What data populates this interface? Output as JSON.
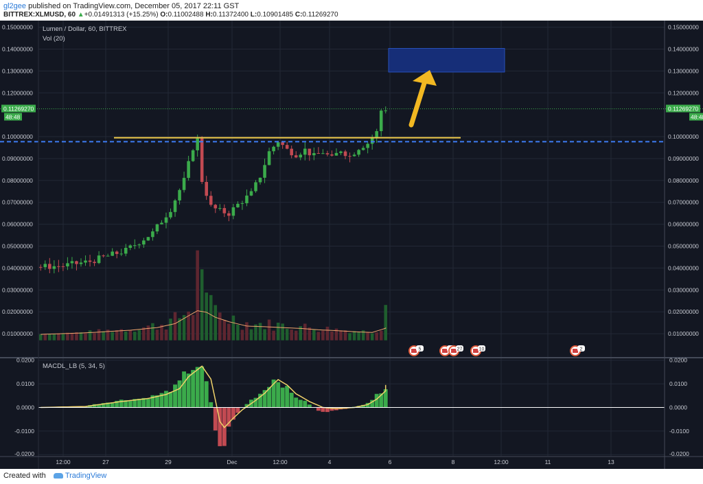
{
  "header": {
    "user": "gl2gee",
    "published": " published on TradingView.com, December 05, 2017 22:11 GST",
    "symbol": "BITTREX:XLMUSD, 60",
    "change_arrow": "▲",
    "change": "+0.01491313 (+15.25%)",
    "o_label": "O:",
    "o": "0.11002488",
    "h_label": "H:",
    "h": "0.11372400",
    "l_label": "L:",
    "l": "0.10901485",
    "c_label": "C:",
    "c": "0.11269270",
    "up_color": "#3bab4b"
  },
  "footer": {
    "created_with": "Created with",
    "brand": "TradingView"
  },
  "chart_data": [
    {
      "type": "candlestick",
      "title": "Lumen / Dollar, 60, BITTREX",
      "sub_legend": "Vol (20)",
      "y_axis_ticks": [
        "0.15000000",
        "0.14000000",
        "0.13000000",
        "0.12000000",
        "0.10000000",
        "0.09000000",
        "0.08000000",
        "0.07000000",
        "0.06000000",
        "0.05000000",
        "0.04000000",
        "0.03000000",
        "0.02000000",
        "0.01000000"
      ],
      "y_tick_values": [
        0.15,
        0.14,
        0.13,
        0.12,
        0.1,
        0.09,
        0.08,
        0.07,
        0.06,
        0.05,
        0.04,
        0.03,
        0.02,
        0.01
      ],
      "ylim": [
        0.0,
        0.153
      ],
      "last_price_label": "0.11269270",
      "countdown": "48:48",
      "last_price": 0.1127,
      "resistance_line": 0.0995,
      "dashed_level": 0.0977,
      "target_box": {
        "y_low": 0.1295,
        "y_high": 0.1403
      },
      "x_ticks": [
        "12:00",
        "27",
        "29",
        "Dec",
        "12:00",
        "4",
        "6",
        "8",
        "12:00",
        "11",
        "13"
      ],
      "event_badges": [
        "5",
        "2",
        "27",
        "10",
        "2"
      ],
      "colors": {
        "up": "#3bab4b",
        "down": "#c24a52",
        "vol_ma": "#f2a56e",
        "dashed": "#3d7cf2",
        "resistance": "#f0cc4b",
        "box": "#162e78",
        "arrow": "#f2b822"
      },
      "price_path": [
        [
          0,
          0.0405
        ],
        [
          6,
          0.041
        ],
        [
          12,
          0.043
        ],
        [
          20,
          0.048
        ],
        [
          26,
          0.056
        ],
        [
          30,
          0.067
        ],
        [
          33,
          0.08
        ],
        [
          35,
          0.095
        ],
        [
          36,
          0.0985
        ],
        [
          37,
          0.08
        ],
        [
          39,
          0.068
        ],
        [
          41,
          0.066
        ],
        [
          43,
          0.065
        ],
        [
          45,
          0.069
        ],
        [
          48,
          0.074
        ],
        [
          50,
          0.082
        ],
        [
          52,
          0.093
        ],
        [
          54,
          0.098
        ],
        [
          56,
          0.094
        ],
        [
          58,
          0.092
        ],
        [
          60,
          0.094
        ],
        [
          62,
          0.091
        ],
        [
          64,
          0.093
        ],
        [
          66,
          0.09
        ],
        [
          68,
          0.094
        ],
        [
          70,
          0.091
        ],
        [
          72,
          0.095
        ],
        [
          74,
          0.097
        ],
        [
          76,
          0.102
        ],
        [
          77,
          0.112
        ],
        [
          78,
          0.1127
        ]
      ],
      "volume_path": [
        [
          0,
          0.0097
        ],
        [
          10,
          0.0104
        ],
        [
          20,
          0.0116
        ],
        [
          26,
          0.0128
        ],
        [
          30,
          0.0146
        ],
        [
          33,
          0.0182
        ],
        [
          35,
          0.0205
        ],
        [
          37,
          0.0198
        ],
        [
          39,
          0.0175
        ],
        [
          42,
          0.0155
        ],
        [
          46,
          0.0135
        ],
        [
          50,
          0.0132
        ],
        [
          54,
          0.0128
        ],
        [
          58,
          0.0124
        ],
        [
          62,
          0.0118
        ],
        [
          66,
          0.0114
        ],
        [
          70,
          0.0109
        ],
        [
          74,
          0.0106
        ],
        [
          77,
          0.0125
        ],
        [
          78,
          0.0128
        ]
      ]
    },
    {
      "type": "histogram",
      "title": "MACDL_LB (5, 34, 5)",
      "y_axis_ticks": [
        "0.0200",
        "0.0100",
        "0.0000",
        "-0.0100",
        "-0.0200"
      ],
      "y_tick_values": [
        0.02,
        0.01,
        0.0,
        -0.01,
        -0.02
      ],
      "ylim": [
        -0.0205,
        0.0205
      ],
      "macd_path": [
        [
          0,
          0.0
        ],
        [
          10,
          0.0005
        ],
        [
          18,
          0.003
        ],
        [
          24,
          0.004
        ],
        [
          28,
          0.006
        ],
        [
          31,
          0.009
        ],
        [
          33,
          0.015
        ],
        [
          35,
          0.0175
        ],
        [
          36,
          0.018
        ],
        [
          38,
          0.008
        ],
        [
          39,
          -0.004
        ],
        [
          40,
          -0.016
        ],
        [
          41,
          -0.018
        ],
        [
          43,
          -0.006
        ],
        [
          45,
          -0.001
        ],
        [
          48,
          0.004
        ],
        [
          50,
          0.0065
        ],
        [
          52,
          0.011
        ],
        [
          53,
          0.0125
        ],
        [
          55,
          0.009
        ],
        [
          57,
          0.005
        ],
        [
          60,
          0.002
        ],
        [
          63,
          -0.002
        ],
        [
          66,
          -0.0015
        ],
        [
          70,
          0.0
        ],
        [
          73,
          0.0015
        ],
        [
          75,
          0.004
        ],
        [
          77,
          0.008
        ],
        [
          78,
          0.01
        ]
      ],
      "signal_path": [
        [
          0,
          0.0
        ],
        [
          10,
          0.0004
        ],
        [
          18,
          0.0025
        ],
        [
          24,
          0.0038
        ],
        [
          28,
          0.0055
        ],
        [
          31,
          0.008
        ],
        [
          33,
          0.013
        ],
        [
          35,
          0.016
        ],
        [
          36,
          0.0175
        ],
        [
          38,
          0.012
        ],
        [
          39,
          0.003
        ],
        [
          40,
          -0.006
        ],
        [
          41,
          -0.0085
        ],
        [
          43,
          -0.0045
        ],
        [
          45,
          -0.001
        ],
        [
          48,
          0.003
        ],
        [
          50,
          0.006
        ],
        [
          52,
          0.01
        ],
        [
          53,
          0.0118
        ],
        [
          55,
          0.0095
        ],
        [
          57,
          0.0058
        ],
        [
          60,
          0.0025
        ],
        [
          63,
          0.0
        ],
        [
          66,
          -0.0005
        ],
        [
          70,
          0.0
        ],
        [
          73,
          0.0012
        ],
        [
          75,
          0.0035
        ],
        [
          77,
          0.007
        ],
        [
          78,
          0.0095
        ]
      ],
      "colors": {
        "hist_up": "#3bab4b",
        "hist_down": "#c24a52",
        "signal": "#f0d26a",
        "zero": "#ffffff"
      }
    }
  ]
}
